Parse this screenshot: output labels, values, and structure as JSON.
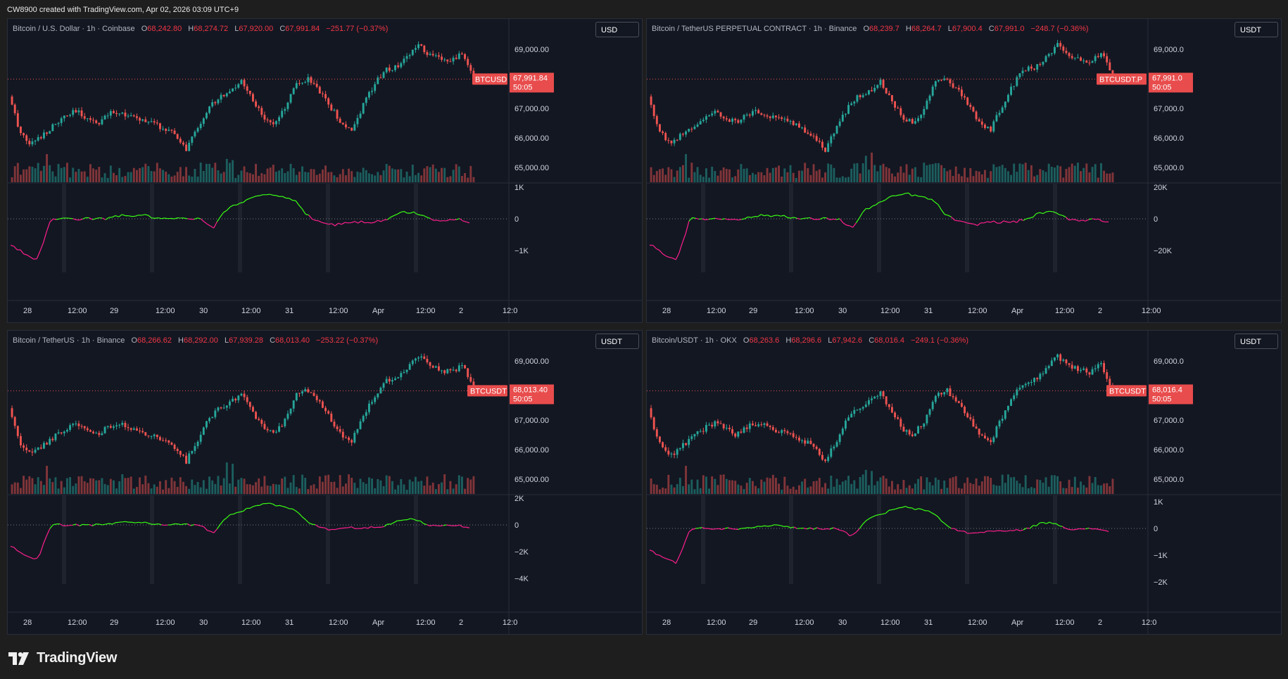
{
  "header": {
    "credit": "CW8900 created with TradingView.com, Apr 02, 2026 03:09 UTC+9"
  },
  "brand": {
    "name": "TradingView"
  },
  "colors": {
    "up": "#26a69a",
    "down": "#ef5350",
    "cvd_up": "#39ff14",
    "cvd_down": "#ff1f8e",
    "background": "#131722",
    "grid": "#2a2e39",
    "text": "#b2b5be"
  },
  "panels": [
    {
      "id": "p1",
      "title": "Bitcoin / U.S. Dollar · 1h · Coinbase",
      "ohlc": {
        "o": "68,242.80",
        "h": "68,274.72",
        "l": "67,920.00",
        "c": "67,991.84",
        "chg": "−251.77 (−0.37%)"
      },
      "currency": "USD",
      "ticker": "BTCUSD",
      "last_price": "67,991.84",
      "countdown": "50:05",
      "price_ticks": [
        "69,000.00",
        "67,000.00",
        "66,000.00",
        "65,000.00"
      ],
      "cvd_ticks": [
        "1K",
        "0",
        "−1K"
      ],
      "time_labels": [
        "28",
        "12:00",
        "29",
        "12:00",
        "30",
        "12:00",
        "31",
        "12:00",
        "Apr",
        "12:00",
        "2",
        "12:0"
      ]
    },
    {
      "id": "p2",
      "title": "Bitcoin / TetherUS PERPETUAL CONTRACT · 1h · Binance",
      "ohlc": {
        "o": "68,239.7",
        "h": "68,264.7",
        "l": "67,900.4",
        "c": "67,991.0",
        "chg": "−248.7 (−0.36%)"
      },
      "currency": "USDT",
      "ticker": "BTCUSDT.P",
      "last_price": "67,991.0",
      "countdown": "50:05",
      "price_ticks": [
        "69,000.0",
        "67,000.0",
        "66,000.0",
        "65,000.0"
      ],
      "cvd_ticks": [
        "20K",
        "0",
        "−20K"
      ],
      "time_labels": [
        "28",
        "12:00",
        "29",
        "12:00",
        "30",
        "12:00",
        "31",
        "12:00",
        "Apr",
        "12:00",
        "2",
        "12:00"
      ]
    },
    {
      "id": "p3",
      "title": "Bitcoin / TetherUS · 1h · Binance",
      "ohlc": {
        "o": "68,266.62",
        "h": "68,292.00",
        "l": "67,939.28",
        "c": "68,013.40",
        "chg": "−253.22 (−0.37%)"
      },
      "currency": "USDT",
      "ticker": "BTCUSDT",
      "last_price": "68,013.40",
      "countdown": "50:05",
      "price_ticks": [
        "69,000.00",
        "67,000.00",
        "66,000.00",
        "65,000.00"
      ],
      "cvd_ticks": [
        "2K",
        "0",
        "−2K",
        "−4K"
      ],
      "time_labels": [
        "28",
        "12:00",
        "29",
        "12:00",
        "30",
        "12:00",
        "31",
        "12:00",
        "Apr",
        "12:00",
        "2",
        "12:0"
      ]
    },
    {
      "id": "p4",
      "title": "Bitcoin/USDT · 1h · OKX",
      "ohlc": {
        "o": "68,263.6",
        "h": "68,296.6",
        "l": "67,942.6",
        "c": "68,016.4",
        "chg": "−249.1 (−0.36%)"
      },
      "currency": "USDT",
      "ticker": "BTCUSDT",
      "last_price": "68,016.4",
      "countdown": "50:05",
      "price_ticks": [
        "69,000.0",
        "67,000.0",
        "66,000.0",
        "65,000.0"
      ],
      "cvd_ticks": [
        "1K",
        "0",
        "−1K",
        "−2K"
      ],
      "time_labels": [
        "28",
        "12:00",
        "29",
        "12:00",
        "30",
        "12:00",
        "31",
        "12:00",
        "Apr",
        "12:00",
        "2",
        "12:0"
      ]
    }
  ],
  "chart_data": {
    "type": "candlestick",
    "interval": "1h",
    "symbol": "Bitcoin",
    "price_axis_range": [
      64500,
      69500
    ],
    "price_series_close_approx": [
      67400,
      66200,
      65800,
      66100,
      66400,
      66700,
      66900,
      66700,
      66500,
      66800,
      66900,
      66700,
      66600,
      66500,
      66300,
      66100,
      65600,
      66300,
      67000,
      67400,
      67600,
      67900,
      67300,
      66700,
      66500,
      67000,
      67900,
      68000,
      67600,
      67100,
      66500,
      66300,
      67100,
      67800,
      68300,
      68400,
      68700,
      69200,
      68800,
      68700,
      68600,
      68900,
      67990
    ],
    "cvd_series_approx": [
      -0.8,
      -1.1,
      -1.3,
      0,
      0,
      0,
      0,
      0,
      0.1,
      0.1,
      0.1,
      0,
      0,
      0,
      0,
      -0.3,
      0.3,
      0.5,
      0.7,
      0.8,
      0.7,
      0.6,
      0.1,
      -0.1,
      -0.2,
      -0.1,
      -0.1,
      -0.1,
      0,
      0.2,
      0.2,
      0,
      -0.05,
      0,
      -0.1
    ],
    "grid": false,
    "legend": "top-left"
  }
}
